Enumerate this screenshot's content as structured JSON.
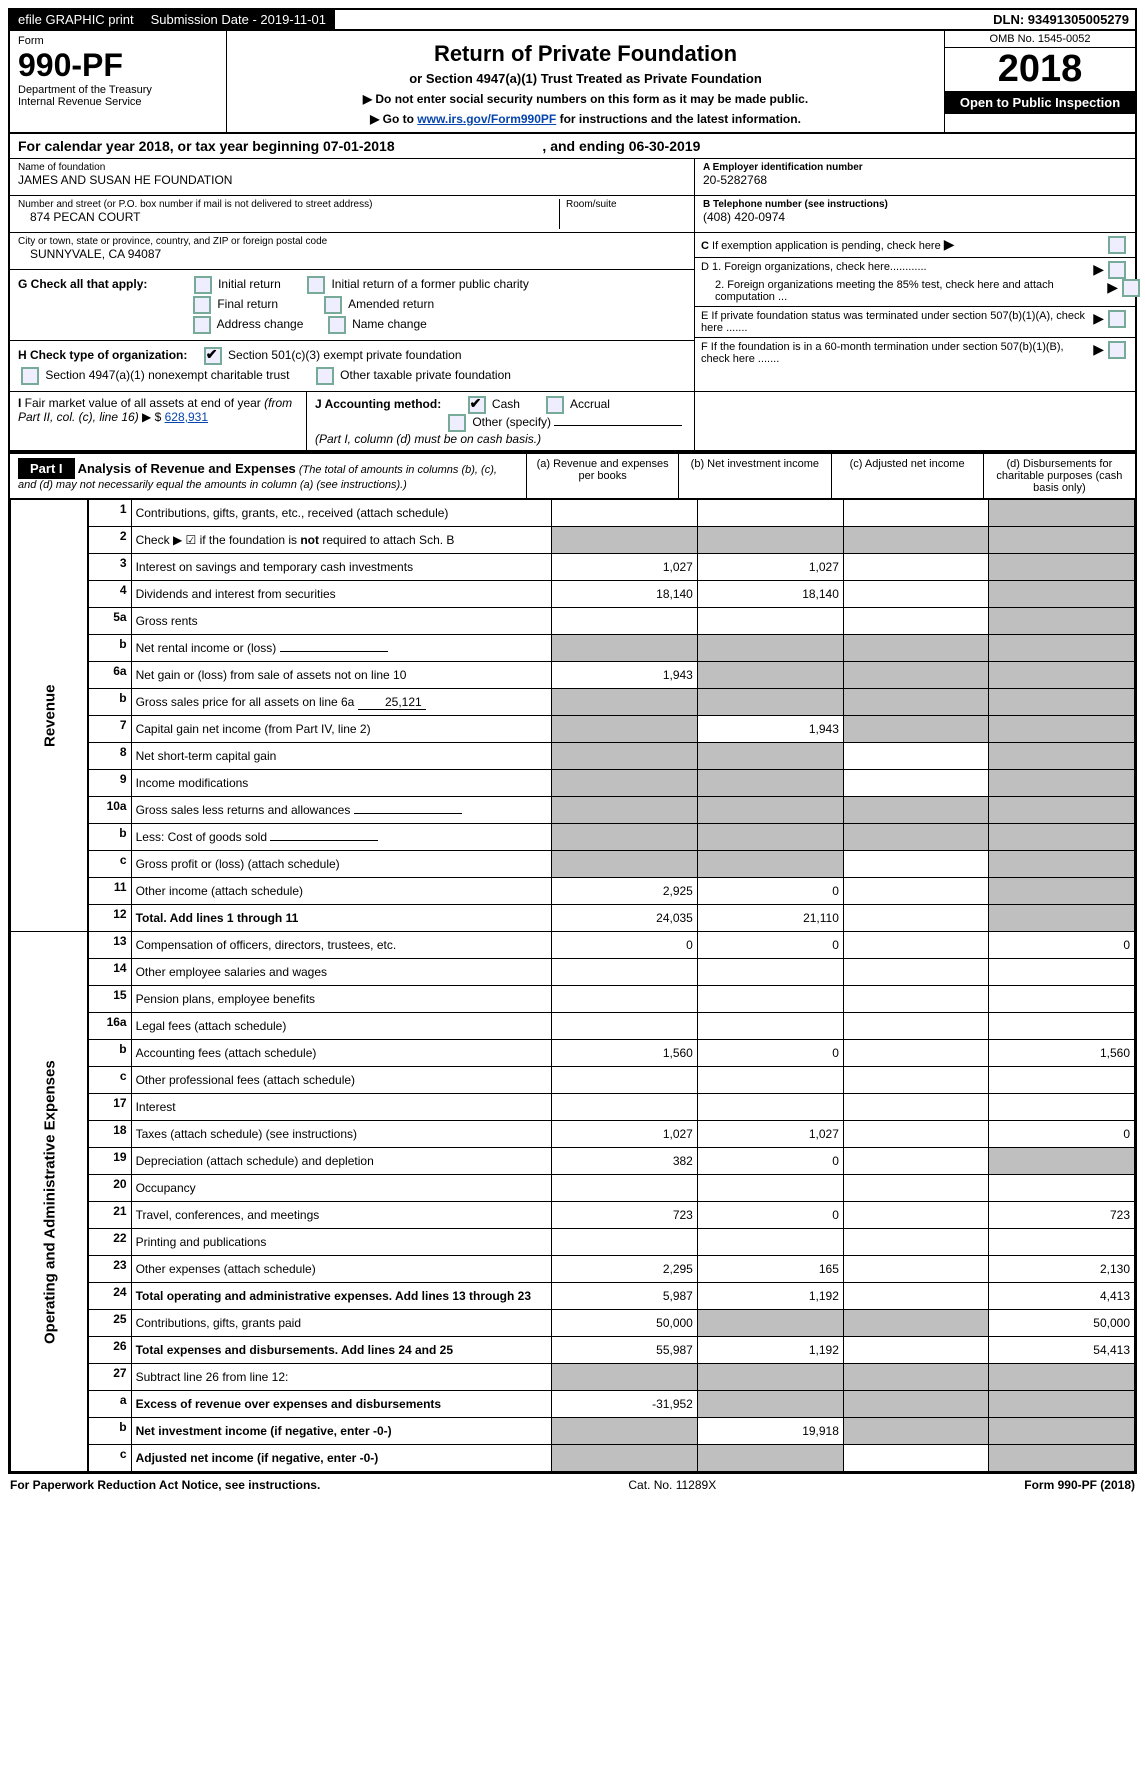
{
  "topbar": {
    "efile": "efile GRAPHIC print",
    "submission_label": "Submission Date - 2019-11-01",
    "dln": "DLN: 93491305005279"
  },
  "header": {
    "form_label": "Form",
    "form_number": "990-PF",
    "dept": "Department of the Treasury",
    "irs": "Internal Revenue Service",
    "title": "Return of Private Foundation",
    "subtitle": "or Section 4947(a)(1) Trust Treated as Private Foundation",
    "instr1": "▶ Do not enter social security numbers on this form as it may be made public.",
    "instr2_prefix": "▶ Go to ",
    "instr2_link": "www.irs.gov/Form990PF",
    "instr2_suffix": " for instructions and the latest information.",
    "omb": "OMB No. 1545-0052",
    "year": "2018",
    "open": "Open to Public Inspection"
  },
  "cal_year": {
    "prefix": "For calendar year 2018, or tax year beginning 07-01-2018",
    "suffix": ", and ending 06-30-2019"
  },
  "entity": {
    "name_label": "Name of foundation",
    "name": "JAMES AND SUSAN HE FOUNDATION",
    "addr_label": "Number and street (or P.O. box number if mail is not delivered to street address)",
    "addr": "874 PECAN COURT",
    "room_label": "Room/suite",
    "city_label": "City or town, state or province, country, and ZIP or foreign postal code",
    "city": "SUNNYVALE, CA  94087",
    "ein_label": "A Employer identification number",
    "ein": "20-5282768",
    "phone_label": "B Telephone number (see instructions)",
    "phone": "(408) 420-0974"
  },
  "right_checks": {
    "c": "C If exemption application is pending, check here",
    "d1": "D 1. Foreign organizations, check here............",
    "d2": "2. Foreign organizations meeting the 85% test, check here and attach computation ...",
    "e": "E If private foundation status was terminated under section 507(b)(1)(A), check here .......",
    "f": "F If the foundation is in a 60-month termination under section 507(b)(1)(B), check here ......."
  },
  "sectionG": {
    "label": "G Check all that apply:",
    "opts": [
      "Initial return",
      "Initial return of a former public charity",
      "Final return",
      "Amended return",
      "Address change",
      "Name change"
    ]
  },
  "sectionH": {
    "label": "H Check type of organization:",
    "opt1": "Section 501(c)(3) exempt private foundation",
    "opt2": "Section 4947(a)(1) nonexempt charitable trust",
    "opt3": "Other taxable private foundation"
  },
  "sectionI": {
    "label": "I Fair market value of all assets at end of year (from Part II, col. (c), line 16) ▶ $",
    "value": "628,931"
  },
  "sectionJ": {
    "label": "J Accounting method:",
    "cash": "Cash",
    "accrual": "Accrual",
    "other": "Other (specify)",
    "note": "(Part I, column (d) must be on cash basis.)"
  },
  "part1": {
    "title": "Part I",
    "heading": "Analysis of Revenue and Expenses",
    "heading_note": "(The total of amounts in columns (b), (c), and (d) may not necessarily equal the amounts in column (a) (see instructions).)",
    "cols": {
      "a": "(a) Revenue and expenses per books",
      "b": "(b) Net investment income",
      "c": "(c) Adjusted net income",
      "d": "(d) Disbursements for charitable purposes (cash basis only)"
    },
    "vlabels": {
      "rev": "Revenue",
      "exp": "Operating and Administrative Expenses"
    },
    "rows": [
      {
        "n": "1",
        "desc": "Contributions, gifts, grants, etc., received (attach schedule)",
        "a": "",
        "b": "",
        "c": "",
        "d": "",
        "dgrey": true
      },
      {
        "n": "2",
        "desc": "Check ▶ ☑ if the foundation is not required to attach Sch. B",
        "a": "",
        "b": "",
        "c": "",
        "d": "",
        "dgrey": true,
        "agrey": true,
        "bgrey": true,
        "cgrey": true,
        "bold_not": true
      },
      {
        "n": "3",
        "desc": "Interest on savings and temporary cash investments",
        "a": "1,027",
        "b": "1,027",
        "c": "",
        "d": "",
        "dgrey": true
      },
      {
        "n": "4",
        "desc": "Dividends and interest from securities",
        "a": "18,140",
        "b": "18,140",
        "c": "",
        "d": "",
        "dgrey": true
      },
      {
        "n": "5a",
        "desc": "Gross rents",
        "a": "",
        "b": "",
        "c": "",
        "d": "",
        "dgrey": true
      },
      {
        "n": "b",
        "desc": "Net rental income or (loss)",
        "a": "",
        "b": "",
        "c": "",
        "d": "",
        "dgrey": true,
        "agrey": true,
        "bgrey": true,
        "cgrey": true,
        "inline_blank": true
      },
      {
        "n": "6a",
        "desc": "Net gain or (loss) from sale of assets not on line 10",
        "a": "1,943",
        "b": "",
        "c": "",
        "d": "",
        "dgrey": true,
        "bgrey": true,
        "cgrey": true
      },
      {
        "n": "b",
        "desc": "Gross sales price for all assets on line 6a",
        "inline_val": "25,121",
        "a": "",
        "b": "",
        "c": "",
        "d": "",
        "dgrey": true,
        "agrey": true,
        "bgrey": true,
        "cgrey": true
      },
      {
        "n": "7",
        "desc": "Capital gain net income (from Part IV, line 2)",
        "a": "",
        "b": "1,943",
        "c": "",
        "d": "",
        "dgrey": true,
        "agrey": true,
        "cgrey": true
      },
      {
        "n": "8",
        "desc": "Net short-term capital gain",
        "a": "",
        "b": "",
        "c": "",
        "d": "",
        "dgrey": true,
        "agrey": true,
        "bgrey": true
      },
      {
        "n": "9",
        "desc": "Income modifications",
        "a": "",
        "b": "",
        "c": "",
        "d": "",
        "dgrey": true,
        "agrey": true,
        "bgrey": true
      },
      {
        "n": "10a",
        "desc": "Gross sales less returns and allowances",
        "a": "",
        "b": "",
        "c": "",
        "d": "",
        "dgrey": true,
        "agrey": true,
        "bgrey": true,
        "cgrey": true,
        "inline_blank": true
      },
      {
        "n": "b",
        "desc": "Less: Cost of goods sold",
        "a": "",
        "b": "",
        "c": "",
        "d": "",
        "dgrey": true,
        "agrey": true,
        "bgrey": true,
        "cgrey": true,
        "inline_blank": true
      },
      {
        "n": "c",
        "desc": "Gross profit or (loss) (attach schedule)",
        "a": "",
        "b": "",
        "c": "",
        "d": "",
        "dgrey": true,
        "agrey": true,
        "bgrey": true
      },
      {
        "n": "11",
        "desc": "Other income (attach schedule)",
        "a": "2,925",
        "b": "0",
        "c": "",
        "d": "",
        "dgrey": true
      },
      {
        "n": "12",
        "desc": "Total. Add lines 1 through 11",
        "a": "24,035",
        "b": "21,110",
        "c": "",
        "d": "",
        "dgrey": true,
        "bold": true
      },
      {
        "n": "13",
        "desc": "Compensation of officers, directors, trustees, etc.",
        "a": "0",
        "b": "0",
        "c": "",
        "d": "0"
      },
      {
        "n": "14",
        "desc": "Other employee salaries and wages",
        "a": "",
        "b": "",
        "c": "",
        "d": ""
      },
      {
        "n": "15",
        "desc": "Pension plans, employee benefits",
        "a": "",
        "b": "",
        "c": "",
        "d": ""
      },
      {
        "n": "16a",
        "desc": "Legal fees (attach schedule)",
        "a": "",
        "b": "",
        "c": "",
        "d": ""
      },
      {
        "n": "b",
        "desc": "Accounting fees (attach schedule)",
        "a": "1,560",
        "b": "0",
        "c": "",
        "d": "1,560"
      },
      {
        "n": "c",
        "desc": "Other professional fees (attach schedule)",
        "a": "",
        "b": "",
        "c": "",
        "d": ""
      },
      {
        "n": "17",
        "desc": "Interest",
        "a": "",
        "b": "",
        "c": "",
        "d": ""
      },
      {
        "n": "18",
        "desc": "Taxes (attach schedule) (see instructions)",
        "a": "1,027",
        "b": "1,027",
        "c": "",
        "d": "0"
      },
      {
        "n": "19",
        "desc": "Depreciation (attach schedule) and depletion",
        "a": "382",
        "b": "0",
        "c": "",
        "d": "",
        "dgrey": true
      },
      {
        "n": "20",
        "desc": "Occupancy",
        "a": "",
        "b": "",
        "c": "",
        "d": ""
      },
      {
        "n": "21",
        "desc": "Travel, conferences, and meetings",
        "a": "723",
        "b": "0",
        "c": "",
        "d": "723"
      },
      {
        "n": "22",
        "desc": "Printing and publications",
        "a": "",
        "b": "",
        "c": "",
        "d": ""
      },
      {
        "n": "23",
        "desc": "Other expenses (attach schedule)",
        "a": "2,295",
        "b": "165",
        "c": "",
        "d": "2,130"
      },
      {
        "n": "24",
        "desc": "Total operating and administrative expenses. Add lines 13 through 23",
        "a": "5,987",
        "b": "1,192",
        "c": "",
        "d": "4,413",
        "bold": true
      },
      {
        "n": "25",
        "desc": "Contributions, gifts, grants paid",
        "a": "50,000",
        "b": "",
        "c": "",
        "d": "50,000",
        "bgrey": true,
        "cgrey": true
      },
      {
        "n": "26",
        "desc": "Total expenses and disbursements. Add lines 24 and 25",
        "a": "55,987",
        "b": "1,192",
        "c": "",
        "d": "54,413",
        "bold": true
      },
      {
        "n": "27",
        "desc": "Subtract line 26 from line 12:",
        "a": "",
        "b": "",
        "c": "",
        "d": "",
        "agrey": true,
        "bgrey": true,
        "cgrey": true,
        "dgrey": true
      },
      {
        "n": "a",
        "desc": "Excess of revenue over expenses and disbursements",
        "a": "-31,952",
        "b": "",
        "c": "",
        "d": "",
        "bold": true,
        "bgrey": true,
        "cgrey": true,
        "dgrey": true
      },
      {
        "n": "b",
        "desc": "Net investment income (if negative, enter -0-)",
        "a": "",
        "b": "19,918",
        "c": "",
        "d": "",
        "bold": true,
        "agrey": true,
        "cgrey": true,
        "dgrey": true
      },
      {
        "n": "c",
        "desc": "Adjusted net income (if negative, enter -0-)",
        "a": "",
        "b": "",
        "c": "",
        "d": "",
        "bold": true,
        "agrey": true,
        "bgrey": true,
        "dgrey": true
      }
    ]
  },
  "footer": {
    "left": "For Paperwork Reduction Act Notice, see instructions.",
    "mid": "Cat. No. 11289X",
    "right": "Form 990-PF (2018)"
  }
}
